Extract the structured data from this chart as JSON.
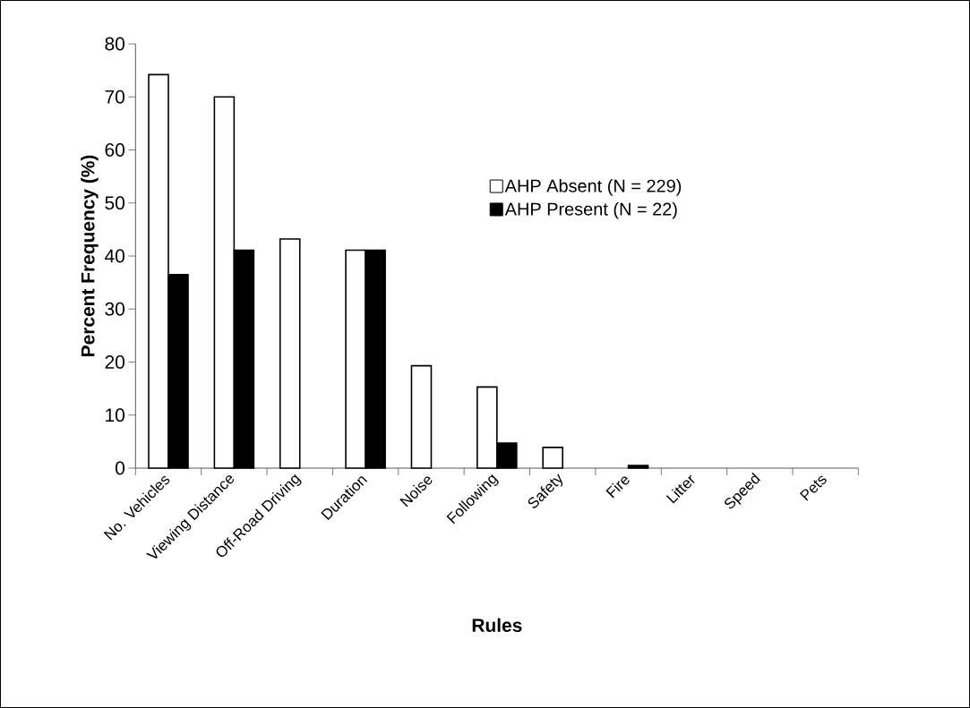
{
  "chart_data": {
    "type": "bar",
    "xlabel": "Rules",
    "ylabel": "Percent Frequency (%)",
    "categories": [
      "No. Vehicles",
      "Viewing Distance",
      "Off-Road Driving",
      "Duration",
      "Noise",
      "Following",
      "Safety",
      "Fire",
      "Litter",
      "Speed",
      "Pets"
    ],
    "series": [
      {
        "name": "AHP Absent (N = 229)",
        "color": "#ffffff",
        "values": [
          74.2,
          70.0,
          43.2,
          41.1,
          19.3,
          15.3,
          3.9,
          0,
          0,
          0,
          0
        ]
      },
      {
        "name": "AHP Present (N = 22)",
        "color": "#000000",
        "values": [
          36.5,
          41.1,
          0,
          41.1,
          0,
          4.7,
          0,
          0.5,
          0,
          0,
          0
        ]
      }
    ],
    "ylim": [
      0,
      80
    ],
    "yticks": [
      0,
      10,
      20,
      30,
      40,
      50,
      60,
      70,
      80
    ],
    "grid": false,
    "legend": "top right"
  }
}
